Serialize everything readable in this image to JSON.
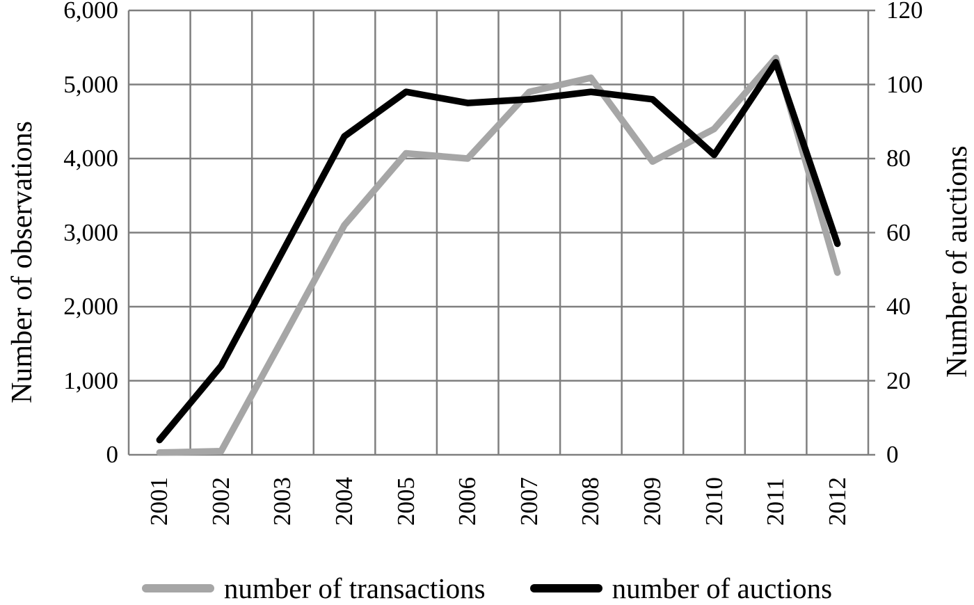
{
  "chart_data": {
    "type": "line",
    "categories": [
      "2001",
      "2002",
      "2003",
      "2004",
      "2005",
      "2006",
      "2007",
      "2008",
      "2009",
      "2010",
      "2011",
      "2012"
    ],
    "series": [
      {
        "name": "number of transactions",
        "axis": "left",
        "color": "#a6a6a6",
        "values": [
          30,
          50,
          1570,
          3100,
          4070,
          4000,
          4900,
          5090,
          3960,
          4400,
          5360,
          2460
        ]
      },
      {
        "name": "number of auctions",
        "axis": "right",
        "color": "#000000",
        "values": [
          4,
          24,
          55,
          86,
          98,
          95,
          96,
          98,
          96,
          81,
          106,
          57
        ]
      }
    ],
    "left_axis": {
      "title": "Number of observations",
      "min": 0,
      "max": 6000,
      "step": 1000,
      "tick_labels": [
        "0",
        "1,000",
        "2,000",
        "3,000",
        "4,000",
        "5,000",
        "6,000"
      ]
    },
    "right_axis": {
      "title": "Number of auctions",
      "min": 0,
      "max": 120,
      "step": 20,
      "tick_labels": [
        "0",
        "20",
        "40",
        "60",
        "80",
        "100",
        "120"
      ]
    },
    "x_axis": {
      "label_rotation_deg": -90
    },
    "grid": true,
    "gridline_color": "#7f7f7f",
    "background_color": "#ffffff",
    "legend_position": "bottom"
  },
  "legend": {
    "items": [
      {
        "label": "number of transactions",
        "color": "#a6a6a6"
      },
      {
        "label": "number of auctions",
        "color": "#000000"
      }
    ]
  }
}
